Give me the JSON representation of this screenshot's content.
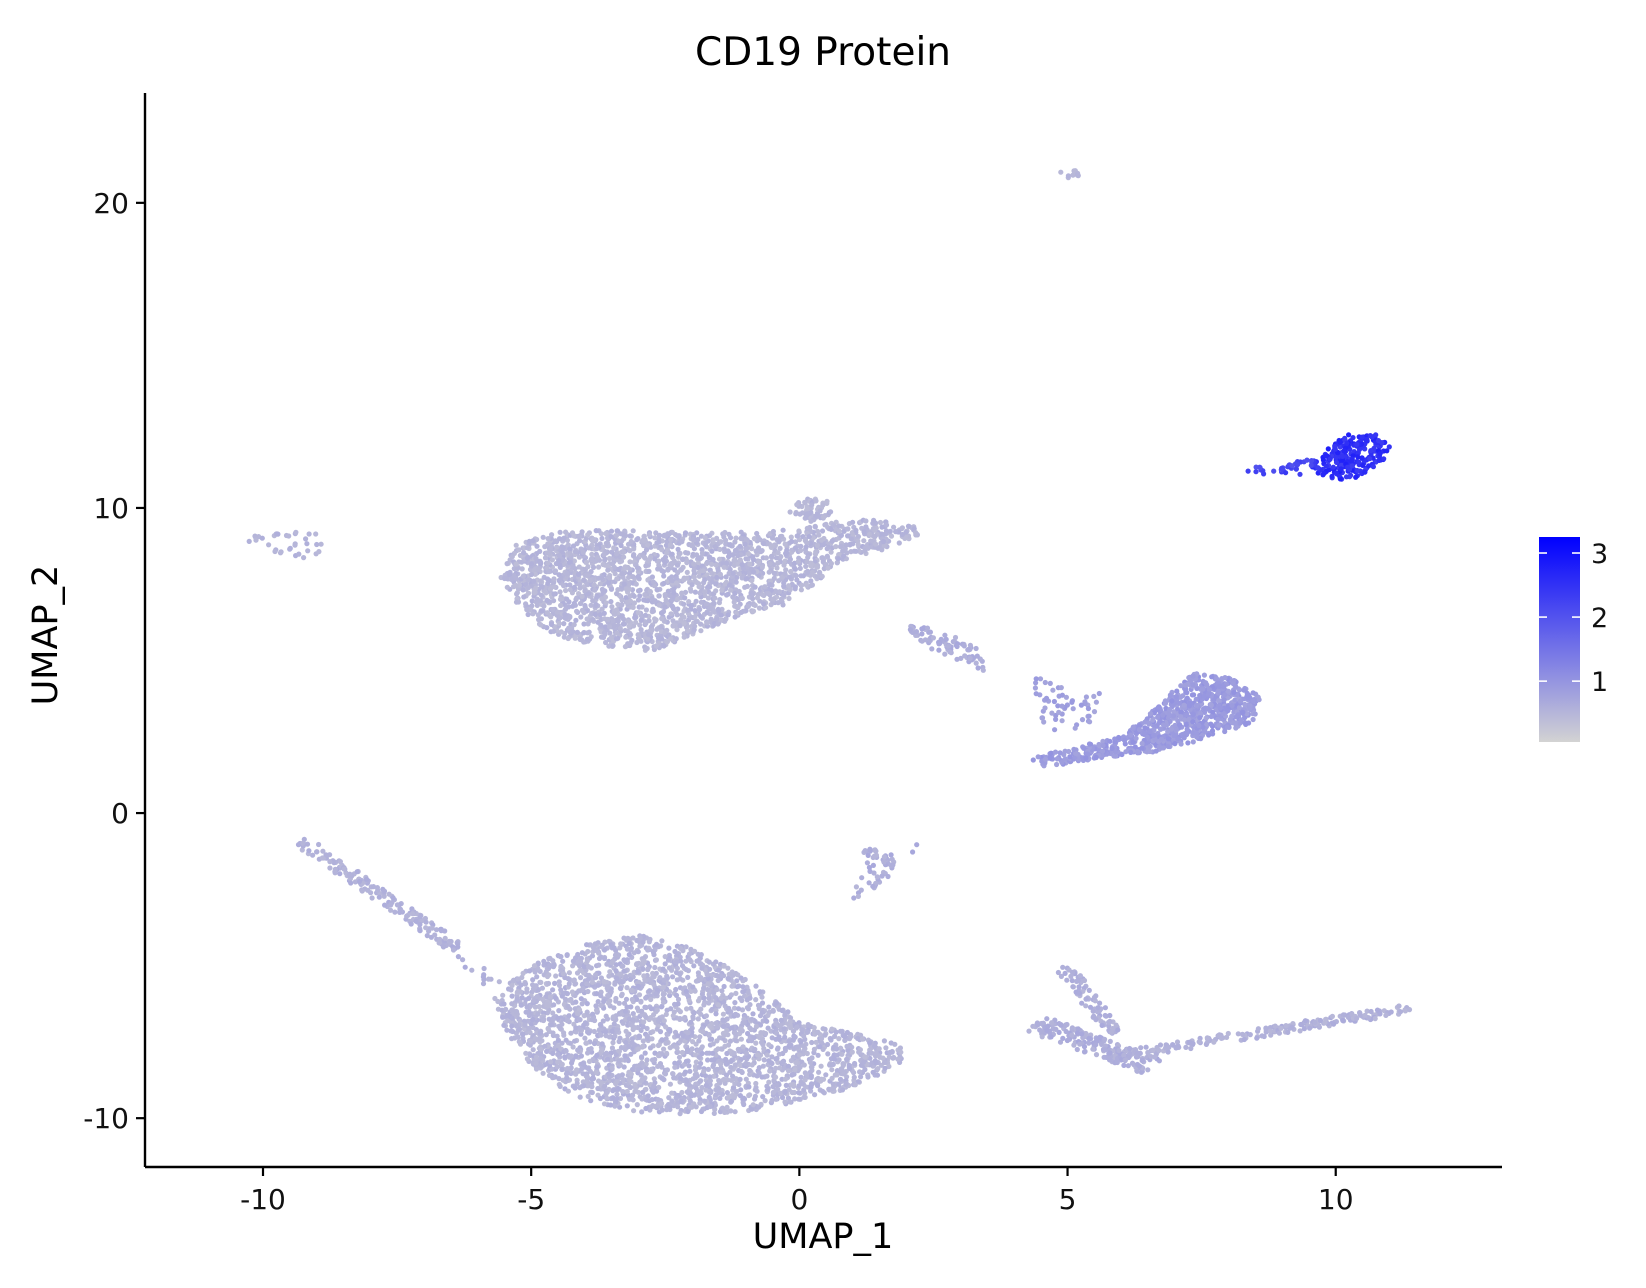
{
  "chart_data": {
    "type": "scatter",
    "title": "CD19 Protein",
    "xlabel": "UMAP_1",
    "ylabel": "UMAP_2",
    "xlim": [
      -12.2,
      13.1
    ],
    "ylim": [
      -11.6,
      23.6
    ],
    "x_ticks": [
      -10,
      -5,
      0,
      5,
      10
    ],
    "x_tick_labels": [
      "-10",
      "-5",
      "0",
      "5",
      "10"
    ],
    "y_ticks": [
      -10,
      0,
      10,
      20
    ],
    "y_tick_labels": [
      "-10",
      "0",
      "10",
      "20"
    ],
    "grid": false,
    "legend": {
      "placement": "right",
      "type": "colorbar",
      "min": 0.05,
      "max": 3.25,
      "ticks": [
        1,
        2,
        3
      ],
      "tick_labels": [
        "1",
        "2",
        "3"
      ],
      "color_low": "#d3d3d3",
      "color_high": "#0000ff"
    },
    "point_color_scale": {
      "low_value": 0.05,
      "high_value": 3.25,
      "low_color": "#d3d3d3",
      "high_color": "#0000ff"
    },
    "clusters": [
      {
        "id": "top-left-large",
        "polygon": [
          [
            -5.6,
            7.8
          ],
          [
            -5.3,
            8.8
          ],
          [
            -4.5,
            9.2
          ],
          [
            -3.5,
            9.3
          ],
          [
            -2.2,
            9.2
          ],
          [
            -1.2,
            9.2
          ],
          [
            0.0,
            9.3
          ],
          [
            0.8,
            9.6
          ],
          [
            1.5,
            9.6
          ],
          [
            2.2,
            9.5
          ],
          [
            2.3,
            9.2
          ],
          [
            1.9,
            8.8
          ],
          [
            1.3,
            8.5
          ],
          [
            0.8,
            8.3
          ],
          [
            0.3,
            7.5
          ],
          [
            -0.3,
            6.8
          ],
          [
            -1.0,
            6.5
          ],
          [
            -1.8,
            6.0
          ],
          [
            -2.7,
            5.3
          ],
          [
            -3.7,
            5.5
          ],
          [
            -4.6,
            5.8
          ],
          [
            -5.2,
            6.7
          ]
        ],
        "count": 2200,
        "value": 0.48,
        "value_jitter": 0.1
      },
      {
        "id": "top-left-bump",
        "polygon": [
          [
            -0.2,
            9.8
          ],
          [
            0.0,
            10.3
          ],
          [
            0.5,
            10.3
          ],
          [
            0.6,
            9.8
          ],
          [
            0.3,
            9.5
          ]
        ],
        "count": 60,
        "value": 0.48,
        "value_jitter": 0.1
      },
      {
        "id": "top-far-left",
        "polygon": [
          [
            -10.4,
            8.9
          ],
          [
            -10.3,
            9.1
          ],
          [
            -9.5,
            9.2
          ],
          [
            -9.1,
            9.3
          ],
          [
            -8.8,
            8.8
          ],
          [
            -9.1,
            8.3
          ],
          [
            -9.6,
            8.5
          ],
          [
            -10.1,
            8.7
          ]
        ],
        "count": 35,
        "value": 0.5,
        "value_jitter": 0.1
      },
      {
        "id": "bottom-left-large",
        "polygon": [
          [
            -5.7,
            -6.0
          ],
          [
            -5.0,
            -5.0
          ],
          [
            -4.0,
            -4.3
          ],
          [
            -3.0,
            -4.0
          ],
          [
            -2.0,
            -4.4
          ],
          [
            -1.0,
            -5.4
          ],
          [
            0.0,
            -6.8
          ],
          [
            1.2,
            -7.3
          ],
          [
            1.9,
            -7.6
          ],
          [
            1.9,
            -8.2
          ],
          [
            1.0,
            -9.0
          ],
          [
            -0.3,
            -9.6
          ],
          [
            -1.5,
            -9.9
          ],
          [
            -3.0,
            -9.8
          ],
          [
            -4.2,
            -9.3
          ],
          [
            -5.0,
            -8.3
          ],
          [
            -5.5,
            -7.1
          ]
        ],
        "count": 2600,
        "value": 0.5,
        "value_jitter": 0.1
      },
      {
        "id": "mid-right-cluster",
        "polygon": [
          [
            4.3,
            1.8
          ],
          [
            5.0,
            2.1
          ],
          [
            6.0,
            2.5
          ],
          [
            6.7,
            3.5
          ],
          [
            7.3,
            4.6
          ],
          [
            8.1,
            4.4
          ],
          [
            8.6,
            3.8
          ],
          [
            8.5,
            3.0
          ],
          [
            7.5,
            2.4
          ],
          [
            6.6,
            2.0
          ],
          [
            5.6,
            1.8
          ],
          [
            4.6,
            1.5
          ]
        ],
        "count": 900,
        "value": 0.9,
        "value_jitter": 0.13
      },
      {
        "id": "mid-right-left-lobe",
        "polygon": [
          [
            4.4,
            4.5
          ],
          [
            5.0,
            4.2
          ],
          [
            5.7,
            3.9
          ],
          [
            5.4,
            2.9
          ],
          [
            4.8,
            2.6
          ],
          [
            4.4,
            3.2
          ]
        ],
        "count": 55,
        "value": 0.8,
        "value_jitter": 0.12
      },
      {
        "id": "mid-small",
        "polygon": [
          [
            2.0,
            6.2
          ],
          [
            2.6,
            6.0
          ],
          [
            3.3,
            5.5
          ],
          [
            3.5,
            4.6
          ],
          [
            3.1,
            4.9
          ],
          [
            2.4,
            5.4
          ],
          [
            2.1,
            5.9
          ]
        ],
        "count": 80,
        "value": 0.62,
        "value_jitter": 0.1
      },
      {
        "id": "high-expression",
        "polygon": [
          [
            9.5,
            11.2
          ],
          [
            9.8,
            11.9
          ],
          [
            10.2,
            12.4
          ],
          [
            10.8,
            12.4
          ],
          [
            11.0,
            12.0
          ],
          [
            10.9,
            11.5
          ],
          [
            10.4,
            11.0
          ],
          [
            9.9,
            10.9
          ]
        ],
        "count": 230,
        "value": 2.55,
        "value_jitter": 0.25
      },
      {
        "id": "high-expression-tail",
        "polygon": [
          [
            8.3,
            11.2
          ],
          [
            8.6,
            11.4
          ],
          [
            9.6,
            11.6
          ],
          [
            9.6,
            11.1
          ],
          [
            8.7,
            11.1
          ]
        ],
        "count": 35,
        "value": 2.2,
        "value_jitter": 0.2
      },
      {
        "id": "top-speck",
        "polygon": [
          [
            4.8,
            21.0
          ],
          [
            5.2,
            21.1
          ],
          [
            5.2,
            20.8
          ],
          [
            4.9,
            20.8
          ]
        ],
        "count": 10,
        "value": 0.48,
        "value_jitter": 0.05
      },
      {
        "id": "small-cross",
        "polygon": [
          [
            1.2,
            -1.0
          ],
          [
            1.6,
            -1.2
          ],
          [
            2.4,
            -0.9
          ],
          [
            1.9,
            -1.6
          ],
          [
            1.4,
            -2.6
          ],
          [
            0.9,
            -2.9
          ],
          [
            1.2,
            -2.0
          ],
          [
            1.2,
            -1.4
          ]
        ],
        "count": 55,
        "value": 0.6,
        "value_jitter": 0.12
      }
    ],
    "strands": [
      {
        "id": "left-diagonal",
        "from": [
          -9.3,
          -0.9
        ],
        "to": [
          -6.4,
          -4.4
        ],
        "count": 170,
        "width": 0.18,
        "value": 0.55,
        "value_jitter": 0.1
      },
      {
        "id": "left-diagonal-tail",
        "from": [
          -6.4,
          -4.4
        ],
        "to": [
          -5.7,
          -5.6
        ],
        "count": 15,
        "value": 0.55,
        "width": 0.2,
        "value_jitter": 0.1
      },
      {
        "id": "bottom-right-arm",
        "from": [
          5.8,
          -8.0
        ],
        "to": [
          11.4,
          -6.4
        ],
        "count": 220,
        "width": 0.15,
        "value": 0.55,
        "value_jitter": 0.1
      },
      {
        "id": "bottom-right-hook",
        "from": [
          4.4,
          -6.9
        ],
        "to": [
          6.6,
          -8.3
        ],
        "count": 170,
        "width": 0.3,
        "value": 0.6,
        "value_jitter": 0.1
      },
      {
        "id": "bottom-right-upper",
        "from": [
          4.9,
          -5.0
        ],
        "to": [
          5.9,
          -7.2
        ],
        "count": 80,
        "width": 0.18,
        "value": 0.58,
        "value_jitter": 0.1
      }
    ]
  }
}
